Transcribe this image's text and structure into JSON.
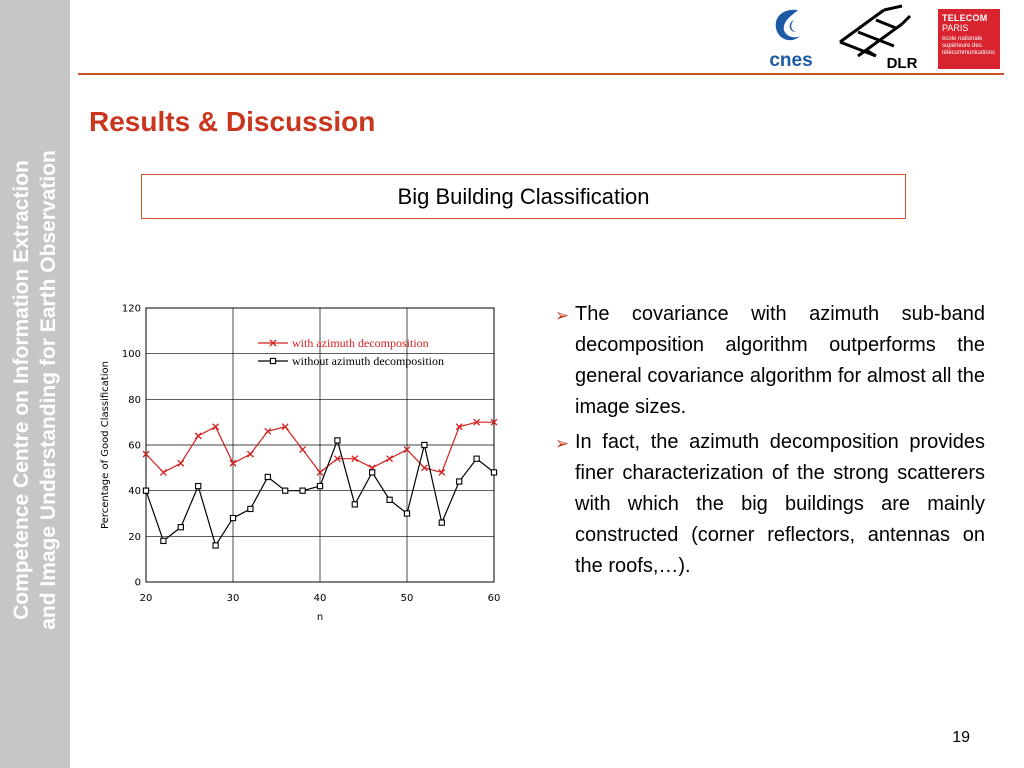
{
  "sidebar": {
    "line1": "Competence Centre on Information Extraction",
    "line2": "and Image Understanding for Earth Observation"
  },
  "logos": {
    "cnes": "cnes",
    "dlr": "DLR",
    "telecom_line1": "TELECOM",
    "telecom_line2": "PARIS",
    "telecom_line3": "école nationale supérieure des télécommunications"
  },
  "slide": {
    "title": "Results & Discussion",
    "subtitle": "Big Building Classification",
    "page_number": "19"
  },
  "bullets": [
    "The covariance with azimuth sub-band decomposition algorithm outperforms the general covariance algorithm for almost all the image sizes.",
    "In fact, the azimuth decomposition provides finer characterization of the strong scatterers with which the big buildings are mainly constructed (corner reflectors, antennas on the roofs,…)."
  ],
  "colors": {
    "accent": "#c8361e",
    "rule": "#c8522a",
    "sidebar": "#c6c6c6",
    "series_with": "#d42020",
    "series_without": "#000000"
  },
  "chart_data": {
    "type": "line",
    "xlabel": "n",
    "ylabel": "Percentage of Good Classification",
    "xlim": [
      20,
      60
    ],
    "ylim": [
      0,
      120
    ],
    "xticks": [
      20,
      30,
      40,
      50,
      60
    ],
    "yticks": [
      0,
      20,
      40,
      60,
      80,
      100,
      120
    ],
    "grid": true,
    "legend_position": "top-right",
    "x": [
      20,
      22,
      24,
      26,
      28,
      30,
      32,
      34,
      36,
      38,
      40,
      42,
      44,
      46,
      48,
      50,
      52,
      54,
      56,
      58,
      60
    ],
    "series": [
      {
        "name": "with azimuth decomposition",
        "marker": "x",
        "values": [
          56,
          48,
          52,
          64,
          68,
          52,
          56,
          66,
          68,
          58,
          48,
          54,
          54,
          50,
          54,
          58,
          50,
          48,
          68,
          70,
          70
        ]
      },
      {
        "name": "without azimuth decomposition",
        "marker": "square",
        "values": [
          40,
          18,
          24,
          42,
          16,
          28,
          32,
          46,
          40,
          40,
          42,
          62,
          34,
          48,
          36,
          30,
          60,
          26,
          44,
          54,
          48
        ]
      }
    ]
  }
}
